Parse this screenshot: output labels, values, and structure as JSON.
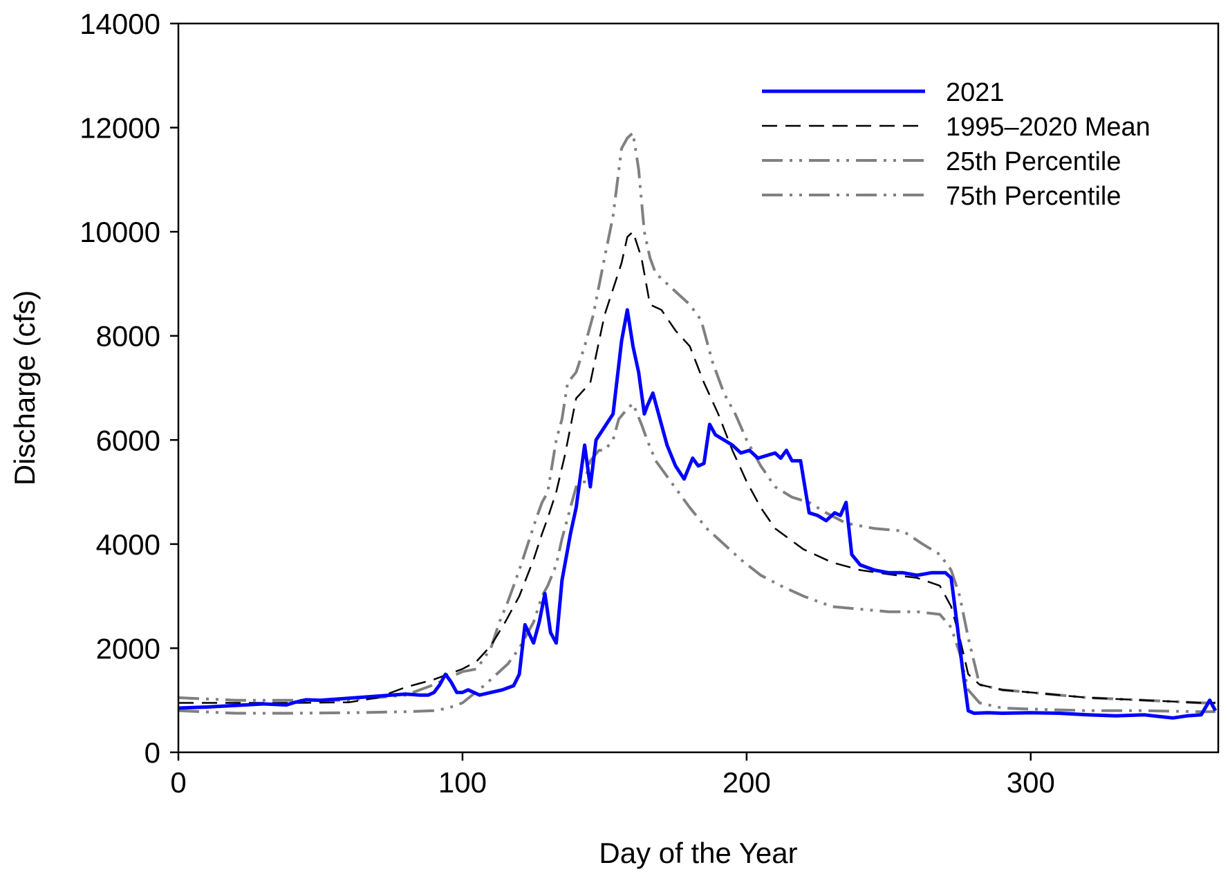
{
  "chart_data": {
    "type": "line",
    "title": "",
    "xlabel": "Day of the Year",
    "ylabel": "Discharge (cfs)",
    "xlim": [
      0,
      366
    ],
    "ylim": [
      0,
      14000
    ],
    "xticks": [
      0,
      100,
      200,
      300
    ],
    "yticks": [
      0,
      2000,
      4000,
      6000,
      8000,
      10000,
      12000,
      14000
    ],
    "grid": false,
    "legend": "top-right",
    "series": [
      {
        "name": "2021",
        "color": "#0000ff",
        "style": "solid",
        "x": [
          0,
          10,
          20,
          30,
          38,
          41,
          45,
          50,
          60,
          70,
          80,
          85,
          88,
          90,
          92,
          94,
          96,
          98,
          100,
          102,
          106,
          110,
          114,
          118,
          120,
          122,
          125,
          127,
          129,
          131,
          133,
          135,
          138,
          140,
          143,
          145,
          147,
          150,
          153,
          156,
          158,
          160,
          162,
          164,
          165,
          167,
          169,
          172,
          175,
          178,
          181,
          183,
          185,
          187,
          189,
          192,
          195,
          198,
          201,
          204,
          207,
          210,
          212,
          214,
          216,
          219,
          222,
          225,
          228,
          231,
          233,
          235,
          237,
          240,
          245,
          250,
          255,
          260,
          265,
          270,
          272,
          274,
          276,
          278,
          280,
          285,
          290,
          300,
          310,
          320,
          330,
          335,
          340,
          345,
          350,
          355,
          360,
          363,
          365
        ],
        "y": [
          850,
          870,
          900,
          930,
          910,
          960,
          1010,
          1000,
          1040,
          1080,
          1120,
          1100,
          1100,
          1150,
          1300,
          1500,
          1350,
          1150,
          1150,
          1200,
          1100,
          1150,
          1200,
          1280,
          1500,
          2450,
          2100,
          2500,
          3050,
          2300,
          2100,
          3300,
          4200,
          4700,
          5900,
          5100,
          6000,
          6250,
          6500,
          7900,
          8500,
          7800,
          7300,
          6500,
          6650,
          6900,
          6500,
          5900,
          5500,
          5250,
          5650,
          5500,
          5550,
          6300,
          6100,
          6000,
          5900,
          5750,
          5800,
          5650,
          5700,
          5750,
          5650,
          5800,
          5600,
          5600,
          4600,
          4550,
          4450,
          4600,
          4550,
          4800,
          3800,
          3600,
          3500,
          3450,
          3450,
          3400,
          3450,
          3450,
          3350,
          2500,
          1600,
          800,
          750,
          760,
          750,
          760,
          750,
          720,
          700,
          710,
          720,
          690,
          660,
          700,
          720,
          1000,
          800
        ]
      },
      {
        "name": "1995–2020 Mean",
        "color": "#000000",
        "style": "dash",
        "x": [
          0,
          20,
          40,
          60,
          70,
          80,
          90,
          100,
          105,
          110,
          115,
          120,
          125,
          128,
          130,
          133,
          136,
          140,
          145,
          150,
          153,
          156,
          158,
          160,
          163,
          166,
          170,
          175,
          180,
          185,
          190,
          195,
          200,
          205,
          210,
          215,
          220,
          230,
          240,
          250,
          260,
          268,
          272,
          275,
          278,
          282,
          290,
          300,
          320,
          340,
          360,
          365
        ],
        "y": [
          950,
          950,
          950,
          960,
          1050,
          1250,
          1400,
          1600,
          1750,
          2050,
          2500,
          3000,
          3700,
          4200,
          4500,
          5000,
          5700,
          6800,
          7100,
          8400,
          8900,
          9400,
          9900,
          10000,
          9500,
          8600,
          8500,
          8100,
          7800,
          7100,
          6500,
          5800,
          5200,
          4700,
          4300,
          4100,
          3900,
          3650,
          3500,
          3420,
          3350,
          3200,
          2800,
          2200,
          1500,
          1300,
          1200,
          1150,
          1050,
          1000,
          950,
          950
        ]
      },
      {
        "name": "25th Percentile",
        "color": "#808080",
        "style": "dashdotdot",
        "x": [
          0,
          20,
          40,
          60,
          80,
          90,
          95,
          100,
          108,
          112,
          116,
          120,
          125,
          128,
          130,
          133,
          135,
          137,
          140,
          143,
          145,
          148,
          150,
          153,
          155,
          158,
          160,
          163,
          165,
          168,
          172,
          176,
          180,
          186,
          192,
          198,
          205,
          212,
          220,
          230,
          240,
          250,
          260,
          268,
          272,
          275,
          278,
          282,
          290,
          300,
          320,
          340,
          360,
          365
        ],
        "y": [
          800,
          750,
          750,
          760,
          780,
          800,
          850,
          950,
          1300,
          1500,
          1700,
          2000,
          2500,
          3000,
          3200,
          3600,
          4100,
          4500,
          5100,
          5200,
          5600,
          5800,
          5800,
          6000,
          6400,
          6600,
          6700,
          6300,
          6000,
          5600,
          5300,
          5000,
          4700,
          4300,
          4000,
          3700,
          3400,
          3200,
          3000,
          2800,
          2750,
          2700,
          2700,
          2650,
          2400,
          1900,
          1200,
          950,
          850,
          830,
          800,
          800,
          780,
          780
        ]
      },
      {
        "name": "75th Percentile",
        "color": "#808080",
        "style": "dashdotdot",
        "x": [
          0,
          20,
          40,
          60,
          80,
          90,
          100,
          105,
          110,
          113,
          116,
          120,
          123,
          126,
          128,
          130,
          133,
          135,
          137,
          140,
          143,
          146,
          150,
          153,
          156,
          158,
          160,
          162,
          164,
          166,
          168,
          172,
          176,
          180,
          184,
          188,
          192,
          196,
          200,
          205,
          210,
          216,
          222,
          228,
          235,
          245,
          255,
          262,
          268,
          272,
          275,
          278,
          282,
          290,
          300,
          320,
          340,
          360,
          365
        ],
        "y": [
          1050,
          1000,
          1000,
          1000,
          1100,
          1300,
          1550,
          1600,
          2000,
          2500,
          2900,
          3500,
          4000,
          4500,
          4800,
          5000,
          6000,
          6400,
          7100,
          7300,
          7800,
          8400,
          9500,
          10300,
          11600,
          11800,
          11900,
          11200,
          10000,
          9500,
          9200,
          9000,
          8800,
          8600,
          8300,
          7500,
          6900,
          6500,
          6000,
          5500,
          5100,
          4900,
          4800,
          4600,
          4400,
          4300,
          4250,
          4000,
          3800,
          3500,
          3000,
          2200,
          1300,
          1200,
          1150,
          1050,
          1000,
          950,
          950
        ]
      }
    ]
  }
}
